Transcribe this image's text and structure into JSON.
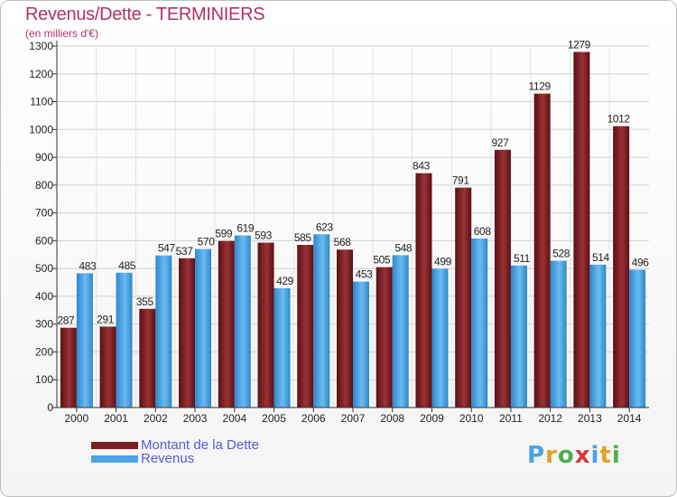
{
  "title": "Revenus/Dette - TERMINIERS",
  "subtitle": "(en milliers d'€)",
  "chart_data": {
    "type": "bar",
    "categories": [
      "2000",
      "2001",
      "2002",
      "2003",
      "2004",
      "2005",
      "2006",
      "2007",
      "2008",
      "2009",
      "2010",
      "2011",
      "2012",
      "2013",
      "2014"
    ],
    "series": [
      {
        "name": "Montant de la Dette",
        "color": "#7a1f22",
        "values": [
          287,
          291,
          355,
          537,
          599,
          593,
          585,
          568,
          505,
          843,
          791,
          927,
          1129,
          1279,
          1012
        ],
        "labels": [
          "287",
          "291",
          "355",
          "537",
          "599",
          "593",
          "585",
          "568",
          "505",
          "843",
          "791",
          "927",
          "1129",
          "1279",
          "1012"
        ]
      },
      {
        "name": "Revenus",
        "color": "#4aa3e6",
        "values": [
          483,
          485,
          547,
          570,
          619,
          429,
          623,
          453,
          548,
          499,
          608,
          511,
          528,
          514,
          496
        ],
        "labels": [
          "483",
          "485",
          "547",
          "570",
          "619",
          "429",
          "623",
          "453",
          "548",
          "499",
          "608",
          "511",
          "528",
          "514",
          "496"
        ]
      }
    ],
    "yticks": [
      "0",
      "100",
      "200",
      "300",
      "400",
      "500",
      "600",
      "700",
      "800",
      "900",
      "1000",
      "1100",
      "1200",
      "1300"
    ],
    "ylim": [
      0,
      1300
    ],
    "grid": true,
    "legend": "bottom-left"
  },
  "legend": {
    "items": [
      {
        "label": "Montant de la Dette",
        "color": "#7a1f22",
        "text_color": "#5a5ad0"
      },
      {
        "label": "Revenus",
        "color": "#4aa3e6",
        "text_color": "#5a5ad0"
      }
    ]
  },
  "logo": {
    "letters": [
      "P",
      "r",
      "o",
      "x",
      "i",
      "t",
      "i"
    ],
    "colors": [
      "#4aa3e6",
      "#e6a02a",
      "#4caf50",
      "#d23a3a",
      "#4aa3e6",
      "#e6a02a",
      "#4caf50"
    ]
  }
}
